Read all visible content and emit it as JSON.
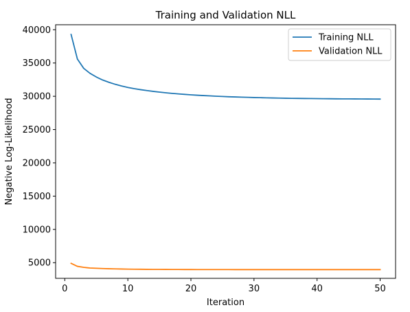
{
  "chart_data": {
    "type": "line",
    "title": "Training and Validation NLL",
    "xlabel": "Iteration",
    "ylabel": "Negative Log-Likelihood",
    "xlim": [
      -1.45,
      52.45
    ],
    "ylim": [
      2650,
      40750
    ],
    "xticks": [
      0,
      10,
      20,
      30,
      40,
      50
    ],
    "yticks": [
      5000,
      10000,
      15000,
      20000,
      25000,
      30000,
      35000,
      40000
    ],
    "grid": false,
    "legend_position": "top-right",
    "x": [
      1,
      2,
      3,
      4,
      5,
      6,
      7,
      8,
      9,
      10,
      11,
      12,
      13,
      14,
      15,
      16,
      17,
      18,
      19,
      20,
      21,
      22,
      23,
      24,
      25,
      26,
      27,
      28,
      29,
      30,
      31,
      32,
      33,
      34,
      35,
      36,
      37,
      38,
      39,
      40,
      41,
      42,
      43,
      44,
      45,
      46,
      47,
      48,
      49,
      50
    ],
    "series": [
      {
        "name": "Training NLL",
        "color": "#1f77b4",
        "values": [
          39300,
          35600,
          34200,
          33450,
          32900,
          32450,
          32100,
          31800,
          31550,
          31330,
          31150,
          31000,
          30860,
          30740,
          30630,
          30530,
          30440,
          30360,
          30290,
          30220,
          30160,
          30110,
          30060,
          30010,
          29970,
          29930,
          29900,
          29870,
          29840,
          29810,
          29790,
          29770,
          29750,
          29730,
          29710,
          29690,
          29680,
          29670,
          29660,
          29650,
          29640,
          29630,
          29620,
          29615,
          29610,
          29605,
          29600,
          29595,
          29590,
          29580
        ]
      },
      {
        "name": "Validation NLL",
        "color": "#ff7f0e",
        "values": [
          4900,
          4450,
          4300,
          4200,
          4160,
          4120,
          4090,
          4070,
          4050,
          4035,
          4020,
          4010,
          4000,
          3995,
          3990,
          3985,
          3980,
          3978,
          3975,
          3972,
          3970,
          3968,
          3966,
          3965,
          3964,
          3963,
          3962,
          3961,
          3960,
          3960,
          3960,
          3960,
          3960,
          3960,
          3960,
          3960,
          3960,
          3960,
          3960,
          3960,
          3960,
          3960,
          3960,
          3960,
          3960,
          3960,
          3960,
          3960,
          3960,
          3960
        ]
      }
    ]
  }
}
